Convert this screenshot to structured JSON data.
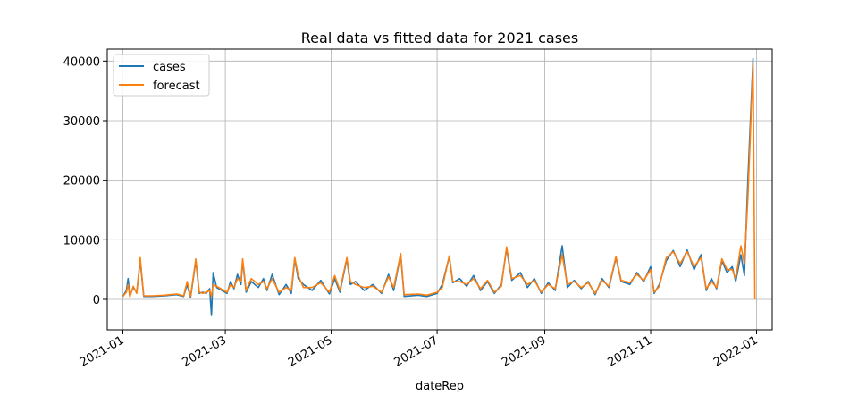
{
  "chart_data": {
    "type": "line",
    "title": "Real data vs fitted data for 2021 cases",
    "xlabel": "dateRep",
    "ylabel": "",
    "x_range": [
      "2020-12-23",
      "2022-01-10"
    ],
    "ylim": [
      -5100,
      42000
    ],
    "x_ticks": [
      "2021-01",
      "2021-03",
      "2021-05",
      "2021-07",
      "2021-09",
      "2021-11",
      "2022-01"
    ],
    "y_ticks": [
      0,
      10000,
      20000,
      30000,
      40000
    ],
    "grid": true,
    "legend": "top-left",
    "colors": {
      "cases": "#1f77b4",
      "forecast": "#ff7f0e"
    },
    "series": [
      {
        "name": "cases",
        "points": [
          [
            "2021-01-01",
            500
          ],
          [
            "2021-01-03",
            1500
          ],
          [
            "2021-01-04",
            3500
          ],
          [
            "2021-01-05",
            600
          ],
          [
            "2021-01-07",
            2000
          ],
          [
            "2021-01-09",
            1200
          ],
          [
            "2021-01-11",
            6500
          ],
          [
            "2021-01-13",
            500
          ],
          [
            "2021-01-18",
            500
          ],
          [
            "2021-01-25",
            600
          ],
          [
            "2021-02-01",
            800
          ],
          [
            "2021-02-05",
            500
          ],
          [
            "2021-02-07",
            2500
          ],
          [
            "2021-02-09",
            300
          ],
          [
            "2021-02-12",
            6500
          ],
          [
            "2021-02-14",
            1000
          ],
          [
            "2021-02-16",
            1200
          ],
          [
            "2021-02-18",
            1000
          ],
          [
            "2021-02-20",
            1800
          ],
          [
            "2021-02-21",
            -2700
          ],
          [
            "2021-02-22",
            4500
          ],
          [
            "2021-02-24",
            2000
          ],
          [
            "2021-03-02",
            1000
          ],
          [
            "2021-03-04",
            3000
          ],
          [
            "2021-03-06",
            1800
          ],
          [
            "2021-03-08",
            4200
          ],
          [
            "2021-03-10",
            2500
          ],
          [
            "2021-03-11",
            6500
          ],
          [
            "2021-03-13",
            1200
          ],
          [
            "2021-03-16",
            3000
          ],
          [
            "2021-03-20",
            2000
          ],
          [
            "2021-03-23",
            3500
          ],
          [
            "2021-03-25",
            1500
          ],
          [
            "2021-03-28",
            4200
          ],
          [
            "2021-04-01",
            800
          ],
          [
            "2021-04-05",
            2500
          ],
          [
            "2021-04-08",
            1000
          ],
          [
            "2021-04-10",
            6800
          ],
          [
            "2021-04-12",
            3500
          ],
          [
            "2021-04-15",
            2500
          ],
          [
            "2021-04-20",
            1500
          ],
          [
            "2021-04-25",
            3200
          ],
          [
            "2021-04-30",
            900
          ],
          [
            "2021-05-03",
            3500
          ],
          [
            "2021-05-06",
            1200
          ],
          [
            "2021-05-10",
            6800
          ],
          [
            "2021-05-12",
            2500
          ],
          [
            "2021-05-15",
            3000
          ],
          [
            "2021-05-20",
            1500
          ],
          [
            "2021-05-25",
            2500
          ],
          [
            "2021-05-30",
            1000
          ],
          [
            "2021-06-03",
            4200
          ],
          [
            "2021-06-06",
            1500
          ],
          [
            "2021-06-10",
            7500
          ],
          [
            "2021-06-12",
            500
          ],
          [
            "2021-06-20",
            700
          ],
          [
            "2021-06-25",
            500
          ],
          [
            "2021-07-01",
            1000
          ],
          [
            "2021-07-04",
            2500
          ],
          [
            "2021-07-08",
            7200
          ],
          [
            "2021-07-10",
            2800
          ],
          [
            "2021-07-14",
            3500
          ],
          [
            "2021-07-18",
            2200
          ],
          [
            "2021-07-22",
            4000
          ],
          [
            "2021-07-26",
            1500
          ],
          [
            "2021-07-30",
            3000
          ],
          [
            "2021-08-03",
            1000
          ],
          [
            "2021-08-07",
            2500
          ],
          [
            "2021-08-10",
            8500
          ],
          [
            "2021-08-13",
            3200
          ],
          [
            "2021-08-18",
            4500
          ],
          [
            "2021-08-22",
            2000
          ],
          [
            "2021-08-26",
            3500
          ],
          [
            "2021-08-30",
            1000
          ],
          [
            "2021-09-03",
            2800
          ],
          [
            "2021-09-07",
            1500
          ],
          [
            "2021-09-11",
            9000
          ],
          [
            "2021-09-14",
            2000
          ],
          [
            "2021-09-18",
            3200
          ],
          [
            "2021-09-22",
            1800
          ],
          [
            "2021-09-26",
            3000
          ],
          [
            "2021-09-30",
            800
          ],
          [
            "2021-10-04",
            3500
          ],
          [
            "2021-10-08",
            2000
          ],
          [
            "2021-10-12",
            7000
          ],
          [
            "2021-10-15",
            3000
          ],
          [
            "2021-10-20",
            2500
          ],
          [
            "2021-10-24",
            4500
          ],
          [
            "2021-10-28",
            3000
          ],
          [
            "2021-11-01",
            5500
          ],
          [
            "2021-11-03",
            1000
          ],
          [
            "2021-11-06",
            2500
          ],
          [
            "2021-11-10",
            6500
          ],
          [
            "2021-11-14",
            8200
          ],
          [
            "2021-11-18",
            5500
          ],
          [
            "2021-11-22",
            8300
          ],
          [
            "2021-11-26",
            5000
          ],
          [
            "2021-11-30",
            7500
          ],
          [
            "2021-12-03",
            1500
          ],
          [
            "2021-12-06",
            3500
          ],
          [
            "2021-12-09",
            1800
          ],
          [
            "2021-12-12",
            6500
          ],
          [
            "2021-12-15",
            4500
          ],
          [
            "2021-12-18",
            5500
          ],
          [
            "2021-12-20",
            3000
          ],
          [
            "2021-12-23",
            7500
          ],
          [
            "2021-12-25",
            4000
          ],
          [
            "2021-12-27",
            20000
          ],
          [
            "2021-12-30",
            40500
          ]
        ]
      },
      {
        "name": "forecast",
        "points": [
          [
            "2021-01-01",
            500
          ],
          [
            "2021-01-03",
            1200
          ],
          [
            "2021-01-04",
            2500
          ],
          [
            "2021-01-05",
            400
          ],
          [
            "2021-01-07",
            2200
          ],
          [
            "2021-01-09",
            1000
          ],
          [
            "2021-01-11",
            7000
          ],
          [
            "2021-01-13",
            600
          ],
          [
            "2021-01-18",
            600
          ],
          [
            "2021-01-25",
            700
          ],
          [
            "2021-02-01",
            900
          ],
          [
            "2021-02-05",
            600
          ],
          [
            "2021-02-07",
            3000
          ],
          [
            "2021-02-09",
            500
          ],
          [
            "2021-02-12",
            6800
          ],
          [
            "2021-02-14",
            1200
          ],
          [
            "2021-02-16",
            1000
          ],
          [
            "2021-02-18",
            1200
          ],
          [
            "2021-02-20",
            1500
          ],
          [
            "2021-02-21",
            500
          ],
          [
            "2021-02-22",
            2500
          ],
          [
            "2021-02-24",
            2200
          ],
          [
            "2021-03-02",
            1200
          ],
          [
            "2021-03-04",
            2500
          ],
          [
            "2021-03-06",
            2000
          ],
          [
            "2021-03-08",
            3500
          ],
          [
            "2021-03-10",
            3000
          ],
          [
            "2021-03-11",
            6800
          ],
          [
            "2021-03-13",
            1500
          ],
          [
            "2021-03-16",
            3500
          ],
          [
            "2021-03-20",
            2500
          ],
          [
            "2021-03-23",
            3000
          ],
          [
            "2021-03-25",
            1800
          ],
          [
            "2021-03-28",
            3500
          ],
          [
            "2021-04-01",
            1200
          ],
          [
            "2021-04-05",
            2000
          ],
          [
            "2021-04-08",
            1500
          ],
          [
            "2021-04-10",
            7000
          ],
          [
            "2021-04-12",
            4000
          ],
          [
            "2021-04-15",
            2000
          ],
          [
            "2021-04-20",
            2000
          ],
          [
            "2021-04-25",
            2800
          ],
          [
            "2021-04-30",
            1200
          ],
          [
            "2021-05-03",
            4000
          ],
          [
            "2021-05-06",
            1500
          ],
          [
            "2021-05-10",
            7000
          ],
          [
            "2021-05-12",
            3000
          ],
          [
            "2021-05-15",
            2500
          ],
          [
            "2021-05-20",
            2000
          ],
          [
            "2021-05-25",
            2200
          ],
          [
            "2021-05-30",
            1200
          ],
          [
            "2021-06-03",
            3800
          ],
          [
            "2021-06-06",
            2000
          ],
          [
            "2021-06-10",
            7700
          ],
          [
            "2021-06-12",
            800
          ],
          [
            "2021-06-20",
            900
          ],
          [
            "2021-06-25",
            700
          ],
          [
            "2021-07-01",
            1200
          ],
          [
            "2021-07-04",
            2000
          ],
          [
            "2021-07-08",
            7300
          ],
          [
            "2021-07-10",
            3000
          ],
          [
            "2021-07-14",
            3000
          ],
          [
            "2021-07-18",
            2500
          ],
          [
            "2021-07-22",
            3500
          ],
          [
            "2021-07-26",
            1800
          ],
          [
            "2021-07-30",
            3200
          ],
          [
            "2021-08-03",
            1200
          ],
          [
            "2021-08-07",
            2200
          ],
          [
            "2021-08-10",
            8800
          ],
          [
            "2021-08-13",
            3500
          ],
          [
            "2021-08-18",
            4000
          ],
          [
            "2021-08-22",
            2500
          ],
          [
            "2021-08-26",
            3200
          ],
          [
            "2021-08-30",
            1200
          ],
          [
            "2021-09-03",
            2500
          ],
          [
            "2021-09-07",
            1800
          ],
          [
            "2021-09-11",
            7500
          ],
          [
            "2021-09-14",
            2500
          ],
          [
            "2021-09-18",
            3000
          ],
          [
            "2021-09-22",
            2000
          ],
          [
            "2021-09-26",
            2800
          ],
          [
            "2021-09-30",
            1000
          ],
          [
            "2021-10-04",
            3200
          ],
          [
            "2021-10-08",
            2200
          ],
          [
            "2021-10-12",
            7200
          ],
          [
            "2021-10-15",
            3200
          ],
          [
            "2021-10-20",
            2800
          ],
          [
            "2021-10-24",
            4200
          ],
          [
            "2021-10-28",
            3200
          ],
          [
            "2021-11-01",
            5000
          ],
          [
            "2021-11-03",
            1200
          ],
          [
            "2021-11-06",
            2200
          ],
          [
            "2021-11-10",
            7000
          ],
          [
            "2021-11-14",
            8000
          ],
          [
            "2021-11-18",
            6000
          ],
          [
            "2021-11-22",
            8000
          ],
          [
            "2021-11-26",
            5500
          ],
          [
            "2021-11-30",
            7000
          ],
          [
            "2021-12-03",
            1800
          ],
          [
            "2021-12-06",
            3000
          ],
          [
            "2021-12-09",
            2000
          ],
          [
            "2021-12-12",
            6800
          ],
          [
            "2021-12-15",
            5000
          ],
          [
            "2021-12-18",
            5000
          ],
          [
            "2021-12-20",
            3500
          ],
          [
            "2021-12-23",
            9000
          ],
          [
            "2021-12-25",
            6000
          ],
          [
            "2021-12-27",
            17000
          ],
          [
            "2021-12-30",
            39500
          ],
          [
            "2021-12-31",
            0
          ]
        ]
      }
    ]
  }
}
